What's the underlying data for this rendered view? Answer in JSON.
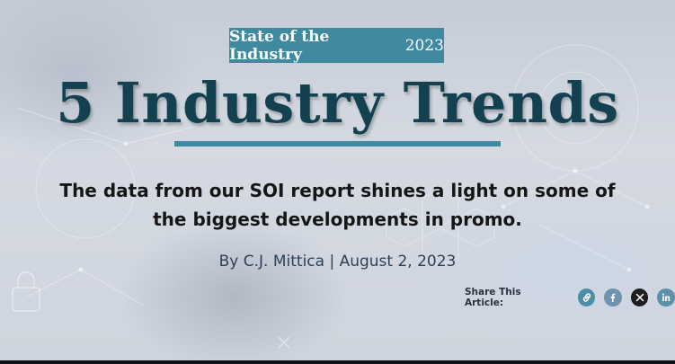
{
  "tag": {
    "title": "State of the Industry",
    "year": "2023"
  },
  "headline": "5 Industry Trends",
  "subtitle": "The data from our SOI report shines a light on some of the biggest developments in promo.",
  "byline": "By C.J. Mittica | August 2, 2023",
  "share": {
    "label": "Share This Article:",
    "buttons": [
      {
        "icon": "link-icon"
      },
      {
        "icon": "facebook-icon"
      },
      {
        "icon": "x-icon"
      },
      {
        "icon": "linkedin-icon"
      }
    ]
  },
  "colors": {
    "accent": "#3f8aa0",
    "headline": "#13414f",
    "byline": "#2e3f55"
  }
}
